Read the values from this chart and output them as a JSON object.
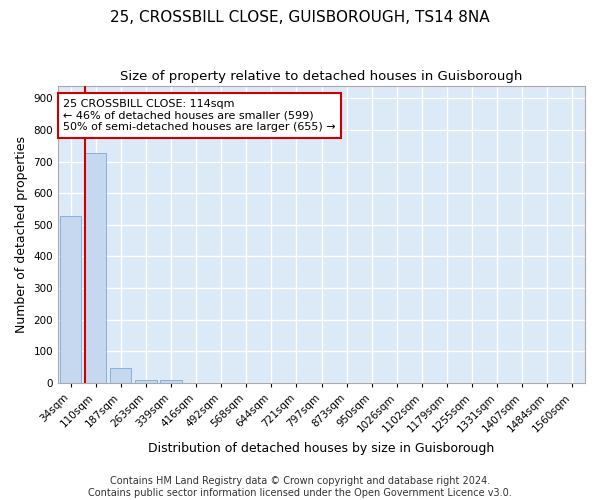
{
  "title_line1": "25, CROSSBILL CLOSE, GUISBOROUGH, TS14 8NA",
  "title_line2": "Size of property relative to detached houses in Guisborough",
  "xlabel": "Distribution of detached houses by size in Guisborough",
  "ylabel": "Number of detached properties",
  "categories": [
    "34sqm",
    "110sqm",
    "187sqm",
    "263sqm",
    "339sqm",
    "416sqm",
    "492sqm",
    "568sqm",
    "644sqm",
    "721sqm",
    "797sqm",
    "873sqm",
    "950sqm",
    "1026sqm",
    "1102sqm",
    "1179sqm",
    "1255sqm",
    "1331sqm",
    "1407sqm",
    "1484sqm",
    "1560sqm"
  ],
  "values": [
    527,
    727,
    47,
    11,
    9,
    0,
    0,
    0,
    0,
    0,
    0,
    0,
    0,
    0,
    0,
    0,
    0,
    0,
    0,
    0,
    0
  ],
  "bar_color": "#c5d8f0",
  "bar_edge_color": "#8ab0d8",
  "annotation_box_text": "25 CROSSBILL CLOSE: 114sqm\n← 46% of detached houses are smaller (599)\n50% of semi-detached houses are larger (655) →",
  "annotation_box_color": "#ffffff",
  "annotation_box_edge_color": "#cc0000",
  "vline_color": "#cc0000",
  "vline_xindex": 1,
  "ylim": [
    0,
    940
  ],
  "yticks": [
    0,
    100,
    200,
    300,
    400,
    500,
    600,
    700,
    800,
    900
  ],
  "footnote": "Contains HM Land Registry data © Crown copyright and database right 2024.\nContains public sector information licensed under the Open Government Licence v3.0.",
  "fig_background_color": "#ffffff",
  "plot_background_color": "#dce9f7",
  "grid_color": "#ffffff",
  "title_fontsize": 11,
  "subtitle_fontsize": 9.5,
  "axis_label_fontsize": 9,
  "tick_fontsize": 7.5,
  "annotation_fontsize": 8,
  "footnote_fontsize": 7
}
